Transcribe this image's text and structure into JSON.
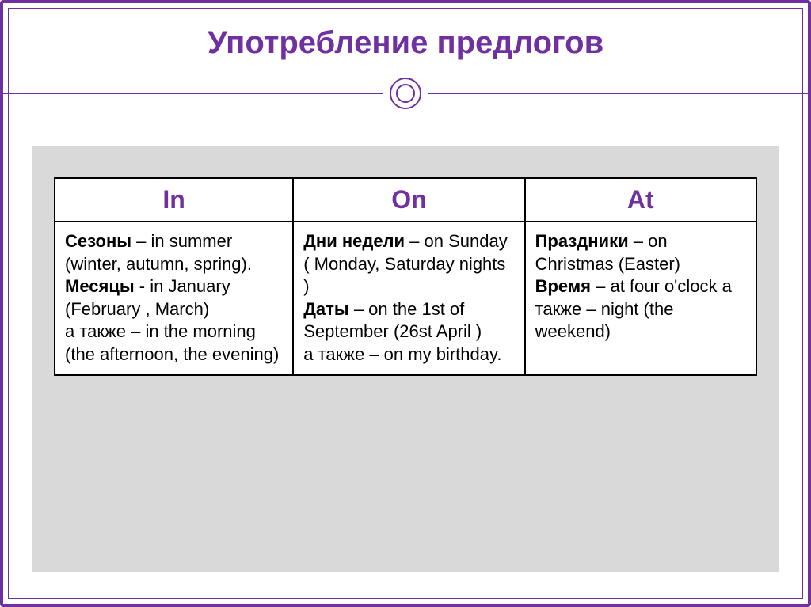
{
  "title": "Употребление предлогов",
  "table": {
    "columns": [
      "In",
      "On",
      "At"
    ],
    "col_widths": [
      "34%",
      "33%",
      "33%"
    ],
    "header_color": "#7030a0",
    "border_color": "#000000",
    "cell_bg": "#ffffff",
    "fontsize_header": 32,
    "fontsize_body": 22,
    "rows": [
      {
        "in": {
          "parts": [
            {
              "bold": true,
              "text": "Сезоны"
            },
            {
              "bold": false,
              "text": " – in summer (winter, autumn, spring)."
            },
            {
              "br": true
            },
            {
              "bold": true,
              "text": "Месяцы"
            },
            {
              "bold": false,
              "text": " -  in January (February , March)"
            },
            {
              "br": true
            },
            {
              "bold": false,
              "text": " а также – in the morning (the afternoon, the evening)"
            }
          ]
        },
        "on": {
          "parts": [
            {
              "bold": true,
              "text": "Дни недели"
            },
            {
              "bold": false,
              "text": " – on Sunday ( Monday, Saturday nights )"
            },
            {
              "br": true
            },
            {
              "bold": true,
              "text": "Даты"
            },
            {
              "bold": false,
              "text": " – on the 1st of September (26st April )"
            },
            {
              "br": true
            },
            {
              "bold": false,
              "text": " а также – on my birthday."
            }
          ]
        },
        "at": {
          "parts": [
            {
              "bold": true,
              "text": "Праздники"
            },
            {
              "bold": false,
              "text": " – on Christmas (Easter)"
            },
            {
              "br": true
            },
            {
              "bold": true,
              "text": "Время"
            },
            {
              "bold": false,
              "text": " – at four o'clock  а также – night (the weekend)"
            }
          ]
        }
      }
    ]
  },
  "colors": {
    "accent": "#7030a0",
    "content_bg": "#d9d9d9",
    "slide_bg": "#ffffff"
  }
}
